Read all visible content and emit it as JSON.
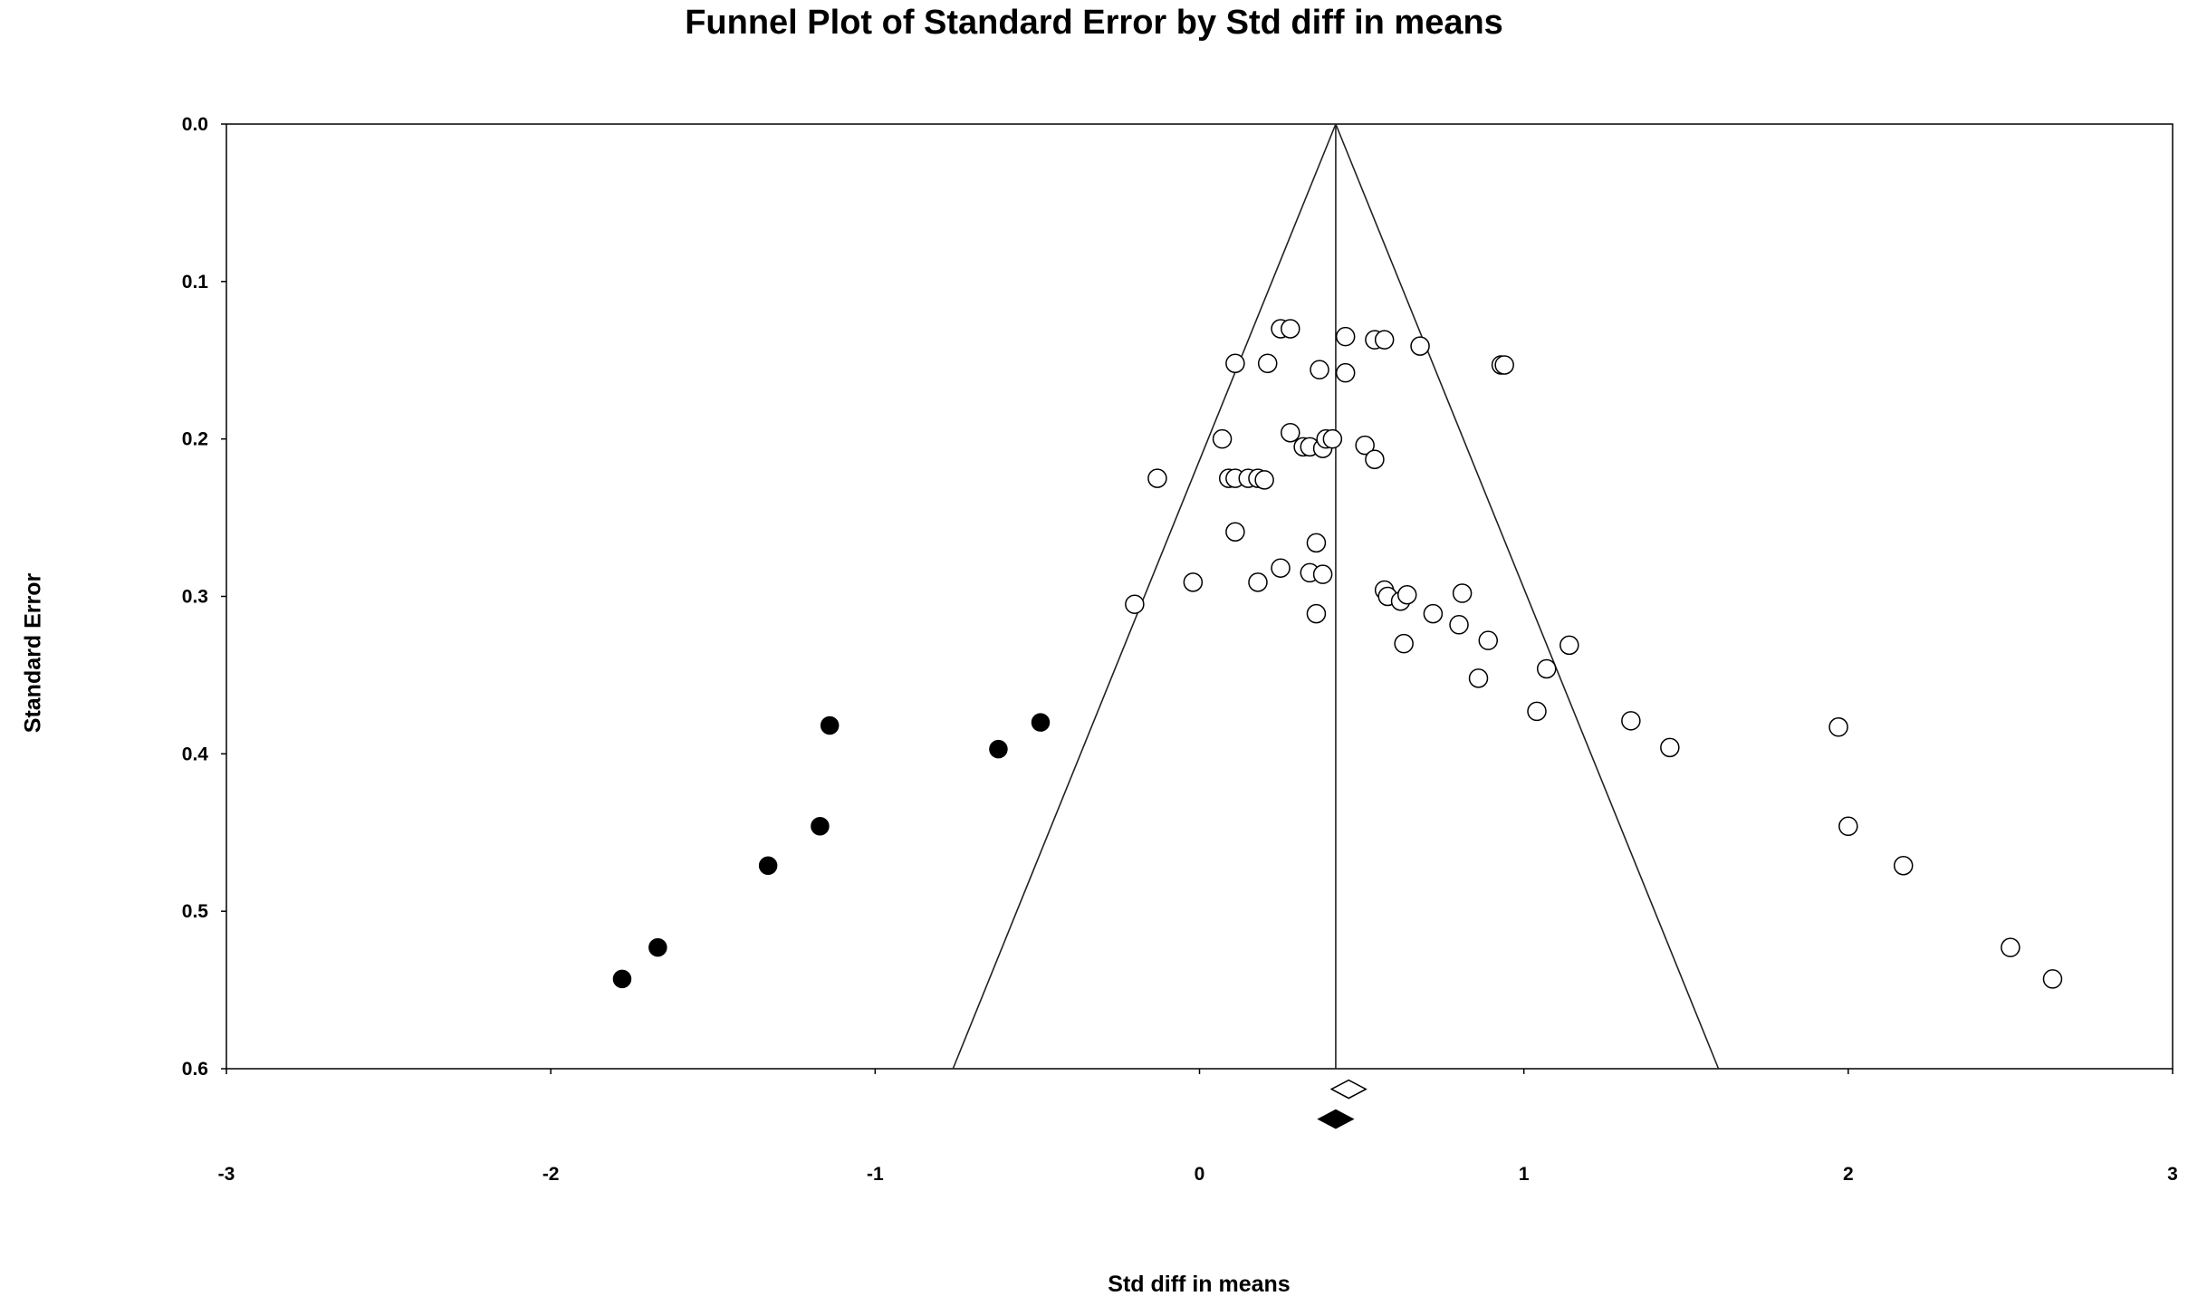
{
  "chart_data": {
    "type": "scatter",
    "title": "Funnel Plot of Standard Error by Std diff in means",
    "xlabel": "Std diff in means",
    "ylabel": "Standard Error",
    "xlim": [
      -3,
      3
    ],
    "ylim": [
      0.0,
      0.6
    ],
    "y_inverted": true,
    "xticks": [
      "-3",
      "-2",
      "-1",
      "0",
      "1",
      "2",
      "3"
    ],
    "yticks": [
      "0.0",
      "0.1",
      "0.2",
      "0.3",
      "0.4",
      "0.5",
      "0.6"
    ],
    "grid": false,
    "funnel": {
      "center": 0.42,
      "apex_se": 0.0,
      "base_se": 0.6,
      "left_base_x": -0.76,
      "right_base_x": 1.6
    },
    "series": [
      {
        "marker": "open-circle",
        "points": [
          [
            0.25,
            0.13
          ],
          [
            0.28,
            0.13
          ],
          [
            0.45,
            0.135
          ],
          [
            0.54,
            0.137
          ],
          [
            0.57,
            0.137
          ],
          [
            0.68,
            0.141
          ],
          [
            0.11,
            0.152
          ],
          [
            0.21,
            0.152
          ],
          [
            0.37,
            0.156
          ],
          [
            0.45,
            0.158
          ],
          [
            0.93,
            0.153
          ],
          [
            0.94,
            0.153
          ],
          [
            0.28,
            0.196
          ],
          [
            0.32,
            0.205
          ],
          [
            0.34,
            0.205
          ],
          [
            0.38,
            0.206
          ],
          [
            0.39,
            0.2
          ],
          [
            0.41,
            0.2
          ],
          [
            0.51,
            0.204
          ],
          [
            0.54,
            0.213
          ],
          [
            0.07,
            0.2
          ],
          [
            -0.13,
            0.225
          ],
          [
            0.09,
            0.225
          ],
          [
            0.11,
            0.225
          ],
          [
            0.15,
            0.225
          ],
          [
            0.18,
            0.225
          ],
          [
            0.2,
            0.226
          ],
          [
            0.11,
            0.259
          ],
          [
            0.36,
            0.266
          ],
          [
            -0.02,
            0.291
          ],
          [
            0.18,
            0.291
          ],
          [
            0.25,
            0.282
          ],
          [
            0.34,
            0.285
          ],
          [
            0.38,
            0.286
          ],
          [
            -0.2,
            0.305
          ],
          [
            0.36,
            0.311
          ],
          [
            0.57,
            0.296
          ],
          [
            0.58,
            0.3
          ],
          [
            0.62,
            0.303
          ],
          [
            0.64,
            0.299
          ],
          [
            0.72,
            0.311
          ],
          [
            0.81,
            0.298
          ],
          [
            0.8,
            0.318
          ],
          [
            0.89,
            0.328
          ],
          [
            0.63,
            0.33
          ],
          [
            1.14,
            0.331
          ],
          [
            1.07,
            0.346
          ],
          [
            0.86,
            0.352
          ],
          [
            1.04,
            0.373
          ],
          [
            1.33,
            0.379
          ],
          [
            1.45,
            0.396
          ],
          [
            1.97,
            0.383
          ],
          [
            2.0,
            0.446
          ],
          [
            2.17,
            0.471
          ],
          [
            2.5,
            0.523
          ],
          [
            2.63,
            0.543
          ]
        ]
      },
      {
        "marker": "filled-circle",
        "points": [
          [
            -1.14,
            0.382
          ],
          [
            -0.49,
            0.38
          ],
          [
            -0.62,
            0.397
          ],
          [
            -1.17,
            0.446
          ],
          [
            -1.33,
            0.471
          ],
          [
            -1.67,
            0.523
          ],
          [
            -1.78,
            0.543
          ]
        ]
      }
    ],
    "summary_diamonds": [
      {
        "style": "open",
        "x": 0.46,
        "y": 0.613
      },
      {
        "style": "filled",
        "x": 0.42,
        "y": 0.632
      }
    ]
  }
}
